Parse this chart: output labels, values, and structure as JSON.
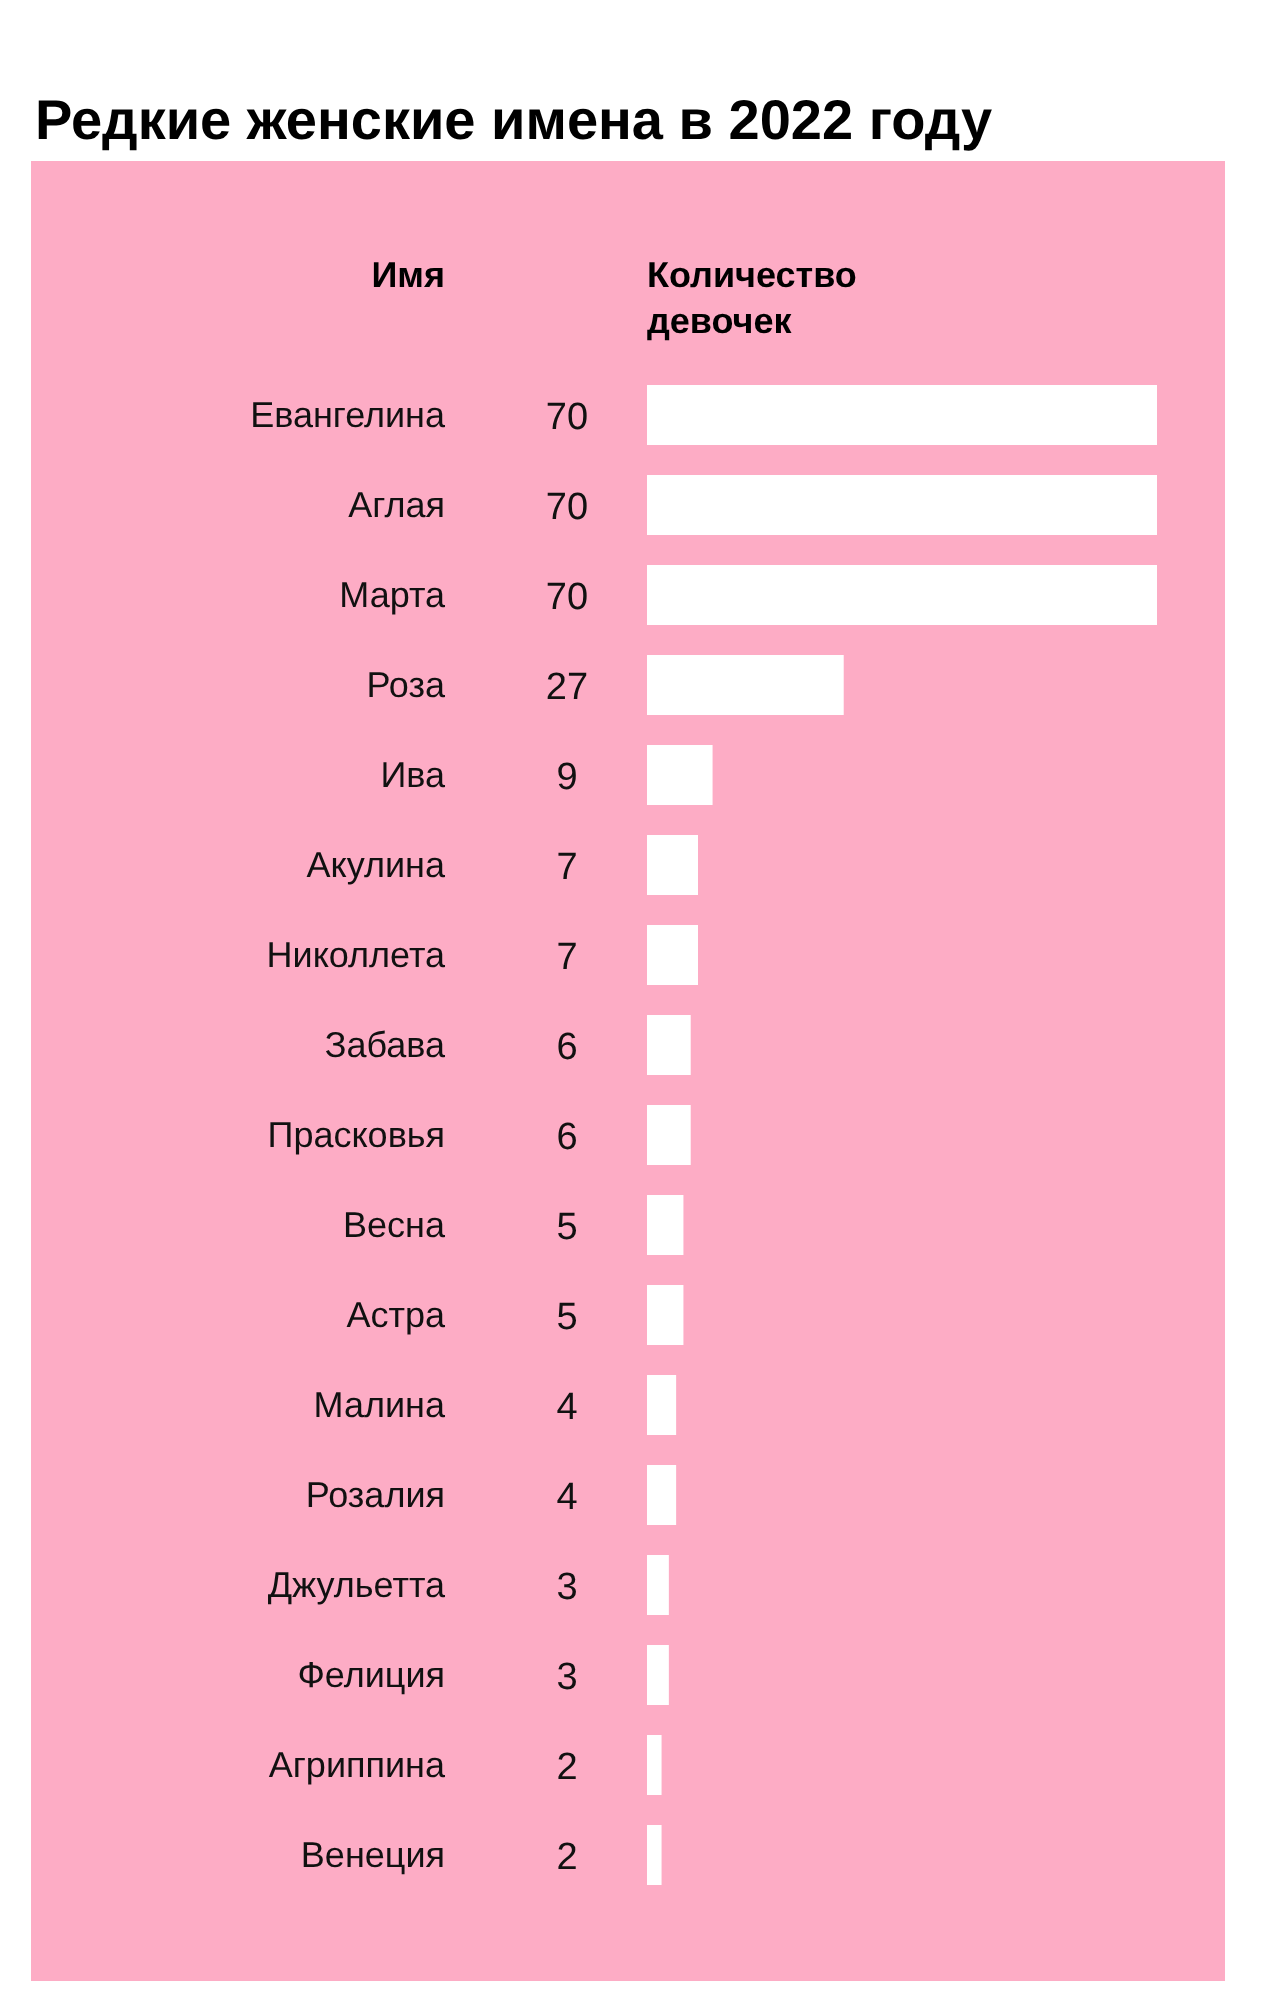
{
  "chart_data": {
    "type": "bar",
    "orientation": "horizontal",
    "title": "Редкие женские имена в 2022 году",
    "ylabel": "Имя",
    "xlabel": "Количество девочек",
    "categories": [
      "Евангелина",
      "Аглая",
      "Марта",
      "Роза",
      "Ива",
      "Акулина",
      "Николлета",
      "Забава",
      "Прасковья",
      "Весна",
      "Астра",
      "Малина",
      "Розалия",
      "Джульетта",
      "Фелиция",
      "Агриппина",
      "Венеция"
    ],
    "values": [
      70,
      70,
      70,
      27,
      9,
      7,
      7,
      6,
      6,
      5,
      5,
      4,
      4,
      3,
      3,
      2,
      2
    ],
    "color": "#ffffff",
    "data_labels": true,
    "grid": false
  }
}
